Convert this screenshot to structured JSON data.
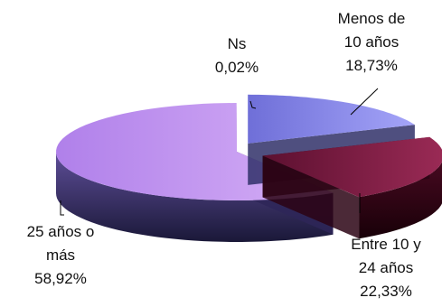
{
  "chart_data": {
    "type": "pie",
    "style": "3d-exploded",
    "slices": [
      {
        "name_lines": [
          "Menos de",
          "10 años"
        ],
        "value_label": "18,73%",
        "value": 18.73,
        "color": "#8b8bf0",
        "dark": "#303068"
      },
      {
        "name_lines": [
          "Entre 10 y",
          "24 años"
        ],
        "value_label": "22,33%",
        "value": 22.33,
        "color": "#7a1a40",
        "dark": "#2c0414"
      },
      {
        "name_lines": [
          "25 años o",
          "más"
        ],
        "value_label": "58,92%",
        "value": 58.92,
        "color": "#c89af0",
        "dark": "#2e2658"
      },
      {
        "name_lines": [
          "Ns"
        ],
        "value_label": "0,02%",
        "value": 0.02,
        "color": "#ffffff",
        "dark": "#ffffff"
      }
    ]
  }
}
